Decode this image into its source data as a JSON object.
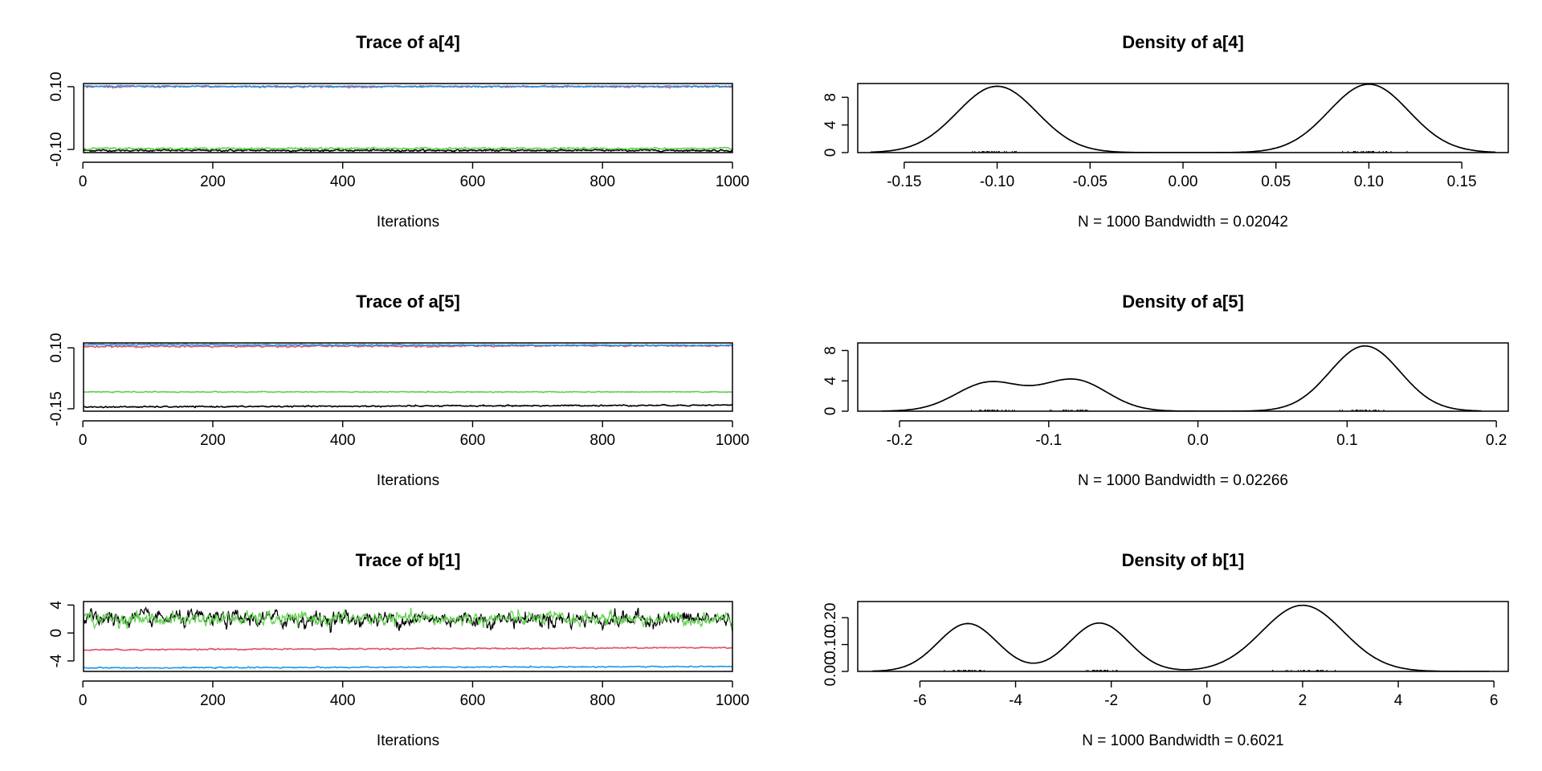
{
  "colors": {
    "chain1": "#000000",
    "chain2": "#DF536B",
    "chain3": "#61D04F",
    "chain4": "#2297E6",
    "baseline": "#BEBEBE"
  },
  "chart_data": [
    {
      "id": "trace_a4",
      "type": "line",
      "title": "Trace of a[4]",
      "xlabel": "Iterations",
      "ylabel": "",
      "xlim": [
        1,
        1000
      ],
      "ylim": [
        -0.11,
        0.11
      ],
      "xticks": [
        0,
        200,
        400,
        600,
        800,
        1000
      ],
      "yticks": [
        -0.1,
        0.1
      ],
      "ytick_labels": [
        "-0.10",
        "0.10"
      ],
      "series": [
        {
          "name": "chain 1",
          "color": "#000000",
          "level": -0.103,
          "noise": 0.0015,
          "drift": 0
        },
        {
          "name": "chain 2",
          "color": "#DF536B",
          "level": 0.1,
          "noise": 0.0015,
          "drift": 0
        },
        {
          "name": "chain 3",
          "color": "#61D04F",
          "level": -0.097,
          "noise": 0.0015,
          "drift": 0
        },
        {
          "name": "chain 4",
          "color": "#2297E6",
          "level": 0.101,
          "noise": 0.0012,
          "drift": 0
        }
      ]
    },
    {
      "id": "density_a4",
      "type": "line",
      "title": "Density of a[4]",
      "xlabel": "N = 1000   Bandwidth = 0.02042",
      "ylabel": "",
      "xlim": [
        -0.175,
        0.175
      ],
      "ylim": [
        0,
        10
      ],
      "xticks": [
        -0.15,
        -0.1,
        -0.05,
        0.0,
        0.05,
        0.1,
        0.15
      ],
      "xtick_labels": [
        "-0.15",
        "-0.10",
        "-0.05",
        "0.00",
        "0.05",
        "0.10",
        "0.15"
      ],
      "yticks": [
        0,
        4,
        8
      ],
      "curve_range": [
        -0.168,
        0.168
      ],
      "components": [
        {
          "mean": -0.1,
          "sd": 0.0215,
          "height": 9.6
        },
        {
          "mean": 0.1,
          "sd": 0.0215,
          "height": 9.9
        }
      ]
    },
    {
      "id": "trace_a5",
      "type": "line",
      "title": "Trace of a[5]",
      "xlabel": "Iterations",
      "ylabel": "",
      "xlim": [
        1,
        1000
      ],
      "ylim": [
        -0.16,
        0.12
      ],
      "xticks": [
        0,
        200,
        400,
        600,
        800,
        1000
      ],
      "yticks": [
        -0.15,
        0.1
      ],
      "ytick_labels": [
        "-0.15",
        "0.10"
      ],
      "series": [
        {
          "name": "chain 1",
          "color": "#000000",
          "level": -0.143,
          "noise": 0.0015,
          "drift": 0.008
        },
        {
          "name": "chain 2",
          "color": "#DF536B",
          "level": 0.105,
          "noise": 0.0018,
          "drift": 0.004
        },
        {
          "name": "chain 3",
          "color": "#61D04F",
          "level": -0.081,
          "noise": 0.001,
          "drift": 0
        },
        {
          "name": "chain 4",
          "color": "#2297E6",
          "level": 0.113,
          "noise": 0.0012,
          "drift": -0.003
        }
      ]
    },
    {
      "id": "density_a5",
      "type": "line",
      "title": "Density of a[5]",
      "xlabel": "N = 1000   Bandwidth = 0.02266",
      "ylabel": "",
      "xlim": [
        -0.228,
        0.208
      ],
      "ylim": [
        0,
        9
      ],
      "xticks": [
        -0.2,
        -0.1,
        0.0,
        0.1,
        0.2
      ],
      "xtick_labels": [
        "-0.2",
        "-0.1",
        "0.0",
        "0.1",
        "0.2"
      ],
      "yticks": [
        0,
        4,
        8
      ],
      "curve_range": [
        -0.212,
        0.19
      ],
      "components": [
        {
          "mean": -0.14,
          "sd": 0.022,
          "height": 3.75
        },
        {
          "mean": -0.083,
          "sd": 0.022,
          "height": 4.1
        },
        {
          "mean": 0.112,
          "sd": 0.0235,
          "height": 8.6
        }
      ]
    },
    {
      "id": "trace_b1",
      "type": "line",
      "title": "Trace of b[1]",
      "xlabel": "Iterations",
      "ylabel": "",
      "xlim": [
        1,
        1000
      ],
      "ylim": [
        -5.5,
        4.5
      ],
      "xticks": [
        0,
        200,
        400,
        600,
        800,
        1000
      ],
      "yticks": [
        -4,
        0,
        4
      ],
      "ytick_labels": [
        "-4",
        "0",
        "4"
      ],
      "series": [
        {
          "name": "chain 1",
          "color": "#000000",
          "level": 2.0,
          "noise": 0.65,
          "drift": 0
        },
        {
          "name": "chain 3",
          "color": "#61D04F",
          "level": 2.0,
          "noise": 0.55,
          "drift": 0
        },
        {
          "name": "chain 2",
          "color": "#DF536B",
          "level": -2.4,
          "noise": 0.05,
          "drift": 0.3
        },
        {
          "name": "chain 4",
          "color": "#2297E6",
          "level": -5.0,
          "noise": 0.04,
          "drift": 0.2
        }
      ]
    },
    {
      "id": "density_b1",
      "type": "line",
      "title": "Density of b[1]",
      "xlabel": "N = 1000   Bandwidth = 0.6021",
      "ylabel": "",
      "xlim": [
        -7.3,
        6.3
      ],
      "ylim": [
        0,
        0.26
      ],
      "xticks": [
        -6,
        -4,
        -2,
        0,
        2,
        4,
        6
      ],
      "xtick_labels": [
        "-6",
        "-4",
        "-2",
        "0",
        "2",
        "4",
        "6"
      ],
      "yticks": [
        0,
        0.1,
        0.2
      ],
      "ytick_labels": [
        "0.00",
        "0.10",
        "0.20"
      ],
      "curve_range": [
        -7.0,
        5.9
      ],
      "components": [
        {
          "mean": -5.0,
          "sd": 0.62,
          "height": 0.178
        },
        {
          "mean": -2.25,
          "sd": 0.62,
          "height": 0.18
        },
        {
          "mean": 2.0,
          "sd": 0.85,
          "height": 0.246
        }
      ]
    }
  ]
}
